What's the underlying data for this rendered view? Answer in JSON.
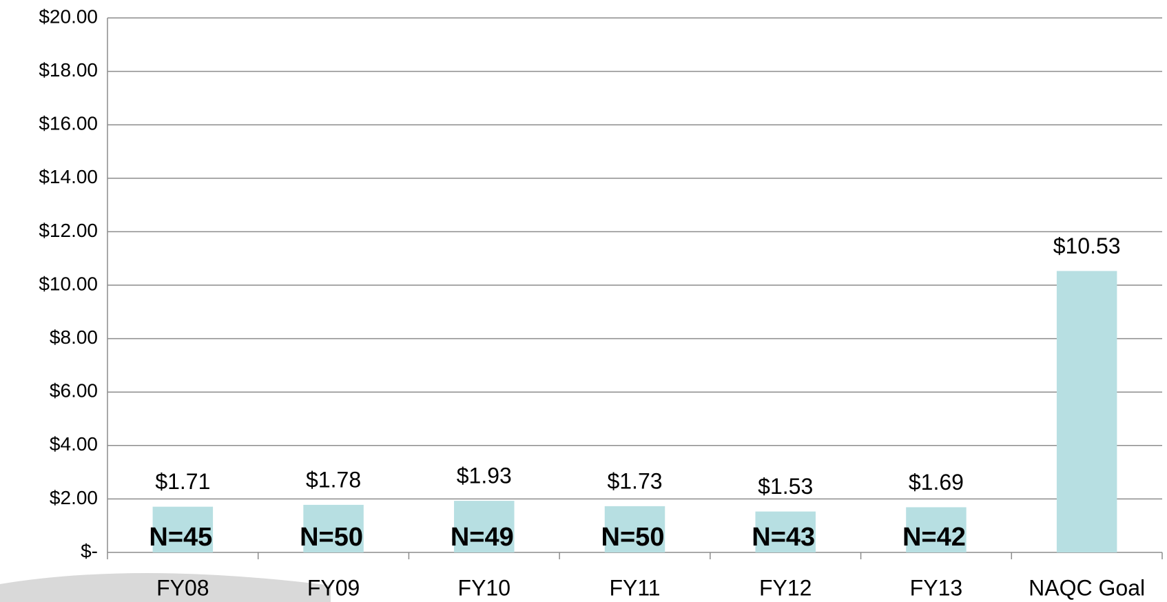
{
  "chart_data": {
    "type": "bar",
    "categories": [
      "FY08",
      "FY09",
      "FY10",
      "FY11",
      "FY12",
      "FY13",
      "NAQC Goal"
    ],
    "values": [
      1.71,
      1.78,
      1.93,
      1.73,
      1.53,
      1.69,
      10.53
    ],
    "value_labels": [
      "$1.71",
      "$1.78",
      "$1.93",
      "$1.73",
      "$1.53",
      "$1.69",
      "$10.53"
    ],
    "annotations": [
      "N=45",
      "N=50",
      "N=49",
      "N=50",
      "N=43",
      "N=42"
    ],
    "color": "#b7dfe2",
    "ylim": [
      0,
      20
    ],
    "yticks": [
      {
        "value": 0,
        "label": "$-"
      },
      {
        "value": 2,
        "label": "$2.00"
      },
      {
        "value": 4,
        "label": "$4.00"
      },
      {
        "value": 6,
        "label": "$6.00"
      },
      {
        "value": 8,
        "label": "$8.00"
      },
      {
        "value": 10,
        "label": "$10.00"
      },
      {
        "value": 12,
        "label": "$12.00"
      },
      {
        "value": 14,
        "label": "$14.00"
      },
      {
        "value": 16,
        "label": "$16.00"
      },
      {
        "value": 18,
        "label": "$18.00"
      },
      {
        "value": 20,
        "label": "$20.00"
      }
    ],
    "grid": true
  }
}
